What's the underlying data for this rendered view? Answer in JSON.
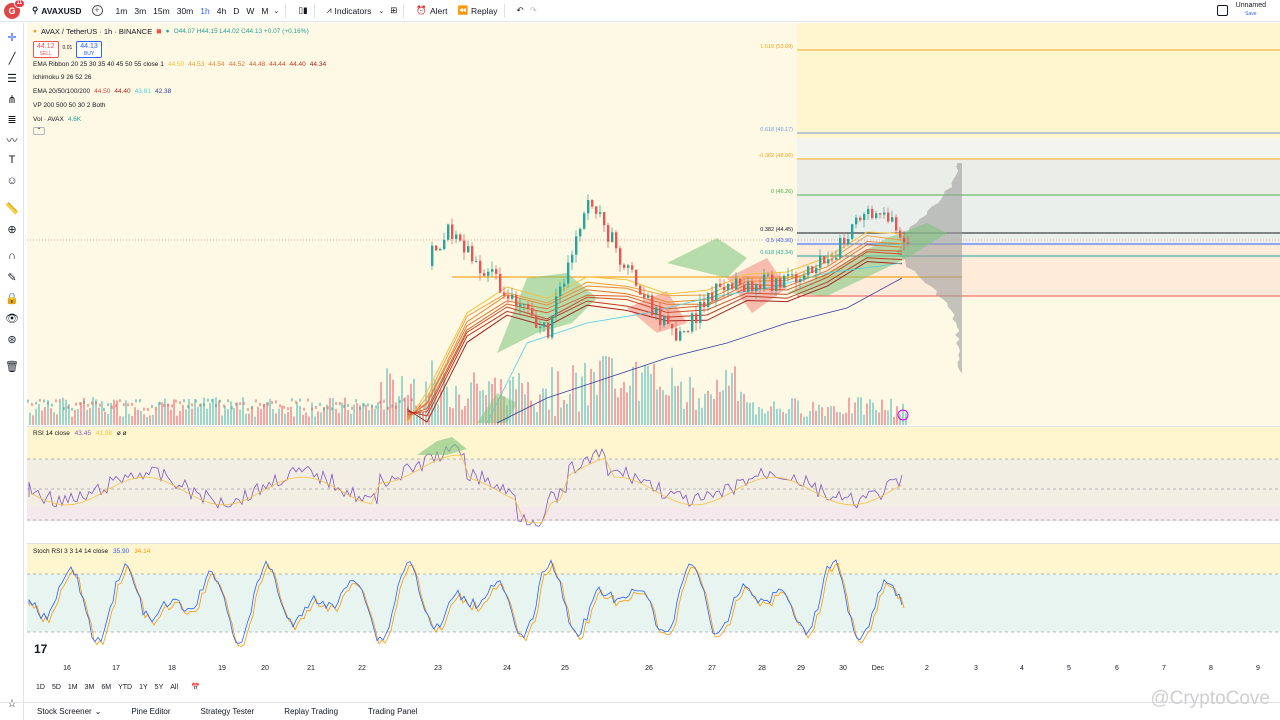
{
  "topbar": {
    "logo_letter": "G",
    "logo_badge": "11",
    "symbol": "AVAXUSD",
    "timeframes": [
      "1m",
      "3m",
      "15m",
      "30m",
      "1h",
      "4h",
      "D",
      "W",
      "M"
    ],
    "active_timeframe": "1h",
    "indicators_label": "Indicators",
    "alert_label": "Alert",
    "replay_label": "Replay",
    "layout_name": "Unnamed",
    "layout_save": "Save"
  },
  "legend": {
    "title": "AVAX / TetherUS · 1h · BINANCE",
    "ohlc": "O44.07 H44.15 L44.02 C44.13 +0.07 (+0.16%)",
    "sell_price": "44.12",
    "sell_label": "SELL",
    "spread": "0.01",
    "buy_price": "44.13",
    "buy_label": "BUY",
    "rows": [
      {
        "name": "EMA Ribbon 20 25 30 35 40 45 50 55 close 1",
        "values": [
          {
            "v": "44.50",
            "c": "#f5c242"
          },
          {
            "v": "44.53",
            "c": "#f0a040"
          },
          {
            "v": "44.54",
            "c": "#e88a3a"
          },
          {
            "v": "44.52",
            "c": "#e07535"
          },
          {
            "v": "44.48",
            "c": "#d86030"
          },
          {
            "v": "44.44",
            "c": "#cc4a2c"
          },
          {
            "v": "44.40",
            "c": "#c03828"
          },
          {
            "v": "44.34",
            "c": "#a82424"
          }
        ]
      },
      {
        "name": "Ichimoku 9 26 52 26",
        "values": []
      },
      {
        "name": "EMA 20/50/100/200",
        "values": [
          {
            "v": "44.50",
            "c": "#e04646"
          },
          {
            "v": "44.40",
            "c": "#a82424"
          },
          {
            "v": "43.81",
            "c": "#4dd0e1"
          },
          {
            "v": "42.38",
            "c": "#3040a0"
          }
        ]
      },
      {
        "name": "VP 200 500 50 30 2 Both",
        "values": []
      },
      {
        "name": "Vol · AVAX",
        "values": [
          {
            "v": "4.6K",
            "c": "#26a69a"
          }
        ]
      }
    ]
  },
  "fib_levels": [
    {
      "label": "1.618 (53.89)",
      "color": "#f5a623"
    },
    {
      "label": "0.618 (49.17)",
      "color": "#6f9cd9"
    },
    {
      "label": "-0.382 (48.06)",
      "color": "#f5a623"
    },
    {
      "label": "0 (46.26)",
      "color": "#4caf50"
    },
    {
      "label": "0.382 (44.45)",
      "color": "#131722"
    },
    {
      "label": "0.5 (43.90)",
      "color": "#2962ff"
    },
    {
      "label": "0.618 (43.34)",
      "color": "#26a69a"
    }
  ],
  "rsi": {
    "label": "RSI 14 close",
    "v1": "43.45",
    "v2": "41.98",
    "extra": "ø ø"
  },
  "stoch": {
    "label": "Stoch RSI 3 3 14 14 close",
    "k": "35.90",
    "d": "34.14"
  },
  "xaxis": [
    "16",
    "17",
    "18",
    "19",
    "20",
    "21",
    "22",
    "23",
    "24",
    "25",
    "26",
    "27",
    "28",
    "29",
    "30",
    "Dec",
    "2",
    "3",
    "4",
    "5",
    "6",
    "7",
    "8",
    "9"
  ],
  "ranges": [
    "1D",
    "5D",
    "1M",
    "3M",
    "6M",
    "YTD",
    "1Y",
    "5Y",
    "All"
  ],
  "bottom_tabs": [
    "Stock Screener",
    "Pine Editor",
    "Strategy Tester",
    "Replay Trading",
    "Trading Panel"
  ],
  "watermark": "@CryptoCove",
  "tv_logo": "17",
  "colors": {
    "up": "#26a69a",
    "down": "#ef5350",
    "rsi": "#7e57c2",
    "stoch_k": "#2962ff",
    "stoch_d": "#ff9800"
  }
}
